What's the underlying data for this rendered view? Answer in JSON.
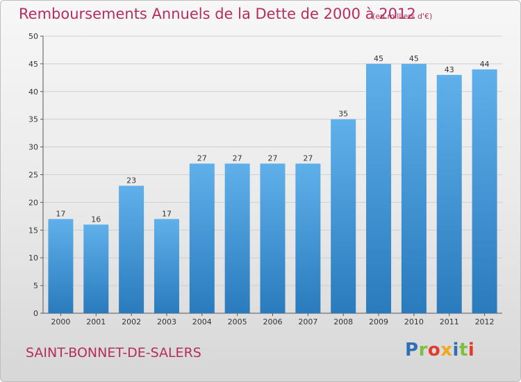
{
  "title": "Remboursements Annuels de la Dette de 2000 à 2012",
  "subtitle": "(en milliers d'€)",
  "location": "SAINT-BONNET-DE-SALERS",
  "logo": {
    "letters": [
      "P",
      "r",
      "o",
      "x",
      "i",
      "t",
      "i"
    ],
    "colors": [
      "#2e6fb5",
      "#7fbf3f",
      "#e23a2c",
      "#f0a81c",
      "#2e6fb5",
      "#7fbf3f",
      "#e23a2c"
    ]
  },
  "colors": {
    "text_accent": "#b52d5e",
    "bar_top": "#5fb0ea",
    "bar_bottom": "#2a7bbd"
  },
  "chart_data": {
    "type": "bar",
    "categories": [
      "2000",
      "2001",
      "2002",
      "2003",
      "2004",
      "2005",
      "2006",
      "2007",
      "2008",
      "2009",
      "2010",
      "2011",
      "2012"
    ],
    "values": [
      17,
      16,
      23,
      17,
      27,
      27,
      27,
      27,
      35,
      45,
      45,
      43,
      44
    ],
    "ylim": [
      0,
      50
    ],
    "yticks": [
      0,
      5,
      10,
      15,
      20,
      25,
      30,
      35,
      40,
      45,
      50
    ],
    "grid": true
  }
}
